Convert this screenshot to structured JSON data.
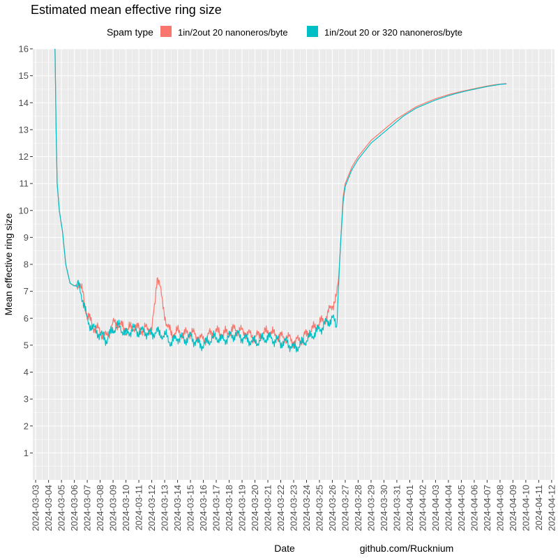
{
  "chart_data": {
    "type": "line",
    "title": "Estimated mean effective ring size",
    "xlabel": "Date",
    "ylabel": "Mean effective ring size",
    "caption": "github.com/Rucknium",
    "legend": {
      "title": "Spam type",
      "position": "top"
    },
    "ylim": [
      0,
      16
    ],
    "yticks": [
      1,
      2,
      3,
      4,
      5,
      6,
      7,
      8,
      9,
      10,
      11,
      12,
      13,
      14,
      15,
      16
    ],
    "xlim": [
      "2024-03-03",
      "2024-04-12"
    ],
    "xticks": [
      "2024-03-03",
      "2024-03-04",
      "2024-03-05",
      "2024-03-06",
      "2024-03-07",
      "2024-03-08",
      "2024-03-09",
      "2024-03-10",
      "2024-03-11",
      "2024-03-12",
      "2024-03-13",
      "2024-03-14",
      "2024-03-15",
      "2024-03-16",
      "2024-03-17",
      "2024-03-18",
      "2024-03-19",
      "2024-03-20",
      "2024-03-21",
      "2024-03-22",
      "2024-03-23",
      "2024-03-24",
      "2024-03-25",
      "2024-03-26",
      "2024-03-27",
      "2024-03-28",
      "2024-03-29",
      "2024-03-30",
      "2024-03-31",
      "2024-04-01",
      "2024-04-02",
      "2024-04-03",
      "2024-04-04",
      "2024-04-05",
      "2024-04-06",
      "2024-04-07",
      "2024-04-08",
      "2024-04-09",
      "2024-04-10",
      "2024-04-11",
      "2024-04-12"
    ],
    "grid": true,
    "series": [
      {
        "name": "1in/2out 20 nanoneros/byte",
        "color": "#F8766D",
        "points": [
          [
            "2024-03-04 12:00",
            16.0
          ],
          [
            "2024-03-04 14:00",
            13.0
          ],
          [
            "2024-03-04 16:00",
            11.0
          ],
          [
            "2024-03-04 20:00",
            10.0
          ],
          [
            "2024-03-05 02:00",
            9.2
          ],
          [
            "2024-03-05 08:00",
            8.0
          ],
          [
            "2024-03-05 16:00",
            7.3
          ],
          [
            "2024-03-06 00:00",
            7.2
          ],
          [
            "2024-03-06 08:00",
            7.3
          ],
          [
            "2024-03-06 16:00",
            6.9
          ],
          [
            "2024-03-07 00:00",
            6.1
          ],
          [
            "2024-03-07 12:00",
            5.7
          ],
          [
            "2024-03-08 00:00",
            5.5
          ],
          [
            "2024-03-08 12:00",
            5.3
          ],
          [
            "2024-03-09 00:00",
            5.8
          ],
          [
            "2024-03-09 12:00",
            5.8
          ],
          [
            "2024-03-10 00:00",
            5.5
          ],
          [
            "2024-03-10 12:00",
            5.7
          ],
          [
            "2024-03-11 00:00",
            5.6
          ],
          [
            "2024-03-11 12:00",
            5.6
          ],
          [
            "2024-03-12 00:00",
            5.6
          ],
          [
            "2024-03-12 06:00",
            6.5
          ],
          [
            "2024-03-12 10:00",
            7.6
          ],
          [
            "2024-03-12 14:00",
            7.4
          ],
          [
            "2024-03-12 20:00",
            6.5
          ],
          [
            "2024-03-13 04:00",
            5.8
          ],
          [
            "2024-03-13 12:00",
            5.4
          ],
          [
            "2024-03-14 00:00",
            5.5
          ],
          [
            "2024-03-14 12:00",
            5.4
          ],
          [
            "2024-03-15 00:00",
            5.5
          ],
          [
            "2024-03-15 12:00",
            5.3
          ],
          [
            "2024-03-16 00:00",
            5.2
          ],
          [
            "2024-03-16 12:00",
            5.4
          ],
          [
            "2024-03-17 00:00",
            5.5
          ],
          [
            "2024-03-17 12:00",
            5.4
          ],
          [
            "2024-03-18 00:00",
            5.5
          ],
          [
            "2024-03-18 12:00",
            5.6
          ],
          [
            "2024-03-19 00:00",
            5.5
          ],
          [
            "2024-03-19 12:00",
            5.4
          ],
          [
            "2024-03-20 00:00",
            5.3
          ],
          [
            "2024-03-20 12:00",
            5.4
          ],
          [
            "2024-03-21 00:00",
            5.5
          ],
          [
            "2024-03-21 12:00",
            5.4
          ],
          [
            "2024-03-22 00:00",
            5.3
          ],
          [
            "2024-03-22 12:00",
            5.3
          ],
          [
            "2024-03-23 00:00",
            5.1
          ],
          [
            "2024-03-23 12:00",
            5.2
          ],
          [
            "2024-03-24 00:00",
            5.4
          ],
          [
            "2024-03-24 12:00",
            5.6
          ],
          [
            "2024-03-25 00:00",
            5.8
          ],
          [
            "2024-03-25 12:00",
            6.0
          ],
          [
            "2024-03-26 00:00",
            6.5
          ],
          [
            "2024-03-26 08:00",
            6.8
          ],
          [
            "2024-03-26 12:00",
            7.5
          ],
          [
            "2024-03-26 16:00",
            9.0
          ],
          [
            "2024-03-26 20:00",
            10.5
          ],
          [
            "2024-03-27 00:00",
            11.0
          ],
          [
            "2024-03-27 12:00",
            11.6
          ],
          [
            "2024-03-28 00:00",
            12.0
          ],
          [
            "2024-03-28 12:00",
            12.3
          ],
          [
            "2024-03-29 00:00",
            12.6
          ],
          [
            "2024-03-29 12:00",
            12.8
          ],
          [
            "2024-03-30 00:00",
            13.0
          ],
          [
            "2024-03-30 12:00",
            13.2
          ],
          [
            "2024-03-31 00:00",
            13.4
          ],
          [
            "2024-03-31 12:00",
            13.55
          ],
          [
            "2024-04-01 00:00",
            13.7
          ],
          [
            "2024-04-01 12:00",
            13.85
          ],
          [
            "2024-04-02 00:00",
            13.95
          ],
          [
            "2024-04-02 12:00",
            14.05
          ],
          [
            "2024-04-03 00:00",
            14.15
          ],
          [
            "2024-04-03 12:00",
            14.22
          ],
          [
            "2024-04-04 00:00",
            14.3
          ],
          [
            "2024-04-04 12:00",
            14.36
          ],
          [
            "2024-04-05 00:00",
            14.42
          ],
          [
            "2024-04-05 12:00",
            14.47
          ],
          [
            "2024-04-06 00:00",
            14.52
          ],
          [
            "2024-04-06 12:00",
            14.57
          ],
          [
            "2024-04-07 00:00",
            14.62
          ],
          [
            "2024-04-07 12:00",
            14.66
          ],
          [
            "2024-04-08 00:00",
            14.69
          ],
          [
            "2024-04-08 12:00",
            14.71
          ]
        ]
      },
      {
        "name": "1in/2out 20 or 320 nanoneros/byte",
        "color": "#00BFC4",
        "points": [
          [
            "2024-03-04 12:00",
            16.0
          ],
          [
            "2024-03-04 14:00",
            13.0
          ],
          [
            "2024-03-04 16:00",
            11.0
          ],
          [
            "2024-03-04 20:00",
            10.0
          ],
          [
            "2024-03-05 02:00",
            9.2
          ],
          [
            "2024-03-05 08:00",
            8.0
          ],
          [
            "2024-03-05 16:00",
            7.3
          ],
          [
            "2024-03-06 00:00",
            7.2
          ],
          [
            "2024-03-06 08:00",
            7.2
          ],
          [
            "2024-03-06 16:00",
            6.7
          ],
          [
            "2024-03-07 00:00",
            5.9
          ],
          [
            "2024-03-07 12:00",
            5.6
          ],
          [
            "2024-03-08 00:00",
            5.4
          ],
          [
            "2024-03-08 12:00",
            5.2
          ],
          [
            "2024-03-09 00:00",
            5.6
          ],
          [
            "2024-03-09 12:00",
            5.7
          ],
          [
            "2024-03-10 00:00",
            5.4
          ],
          [
            "2024-03-10 12:00",
            5.6
          ],
          [
            "2024-03-11 00:00",
            5.5
          ],
          [
            "2024-03-11 12:00",
            5.5
          ],
          [
            "2024-03-12 00:00",
            5.4
          ],
          [
            "2024-03-12 06:00",
            5.5
          ],
          [
            "2024-03-12 10:00",
            5.5
          ],
          [
            "2024-03-12 14:00",
            5.4
          ],
          [
            "2024-03-12 20:00",
            5.4
          ],
          [
            "2024-03-13 04:00",
            5.3
          ],
          [
            "2024-03-13 12:00",
            5.1
          ],
          [
            "2024-03-14 00:00",
            5.3
          ],
          [
            "2024-03-14 12:00",
            5.2
          ],
          [
            "2024-03-15 00:00",
            5.3
          ],
          [
            "2024-03-15 12:00",
            5.1
          ],
          [
            "2024-03-16 00:00",
            5.0
          ],
          [
            "2024-03-16 12:00",
            5.2
          ],
          [
            "2024-03-17 00:00",
            5.3
          ],
          [
            "2024-03-17 12:00",
            5.2
          ],
          [
            "2024-03-18 00:00",
            5.3
          ],
          [
            "2024-03-18 12:00",
            5.4
          ],
          [
            "2024-03-19 00:00",
            5.3
          ],
          [
            "2024-03-19 12:00",
            5.2
          ],
          [
            "2024-03-20 00:00",
            5.1
          ],
          [
            "2024-03-20 12:00",
            5.2
          ],
          [
            "2024-03-21 00:00",
            5.3
          ],
          [
            "2024-03-21 12:00",
            5.2
          ],
          [
            "2024-03-22 00:00",
            5.1
          ],
          [
            "2024-03-22 12:00",
            5.1
          ],
          [
            "2024-03-23 00:00",
            4.9
          ],
          [
            "2024-03-23 12:00",
            5.0
          ],
          [
            "2024-03-24 00:00",
            5.2
          ],
          [
            "2024-03-24 12:00",
            5.4
          ],
          [
            "2024-03-25 00:00",
            5.6
          ],
          [
            "2024-03-25 12:00",
            5.8
          ],
          [
            "2024-03-26 00:00",
            6.0
          ],
          [
            "2024-03-26 08:00",
            5.7
          ],
          [
            "2024-03-26 12:00",
            7.5
          ],
          [
            "2024-03-26 16:00",
            9.0
          ],
          [
            "2024-03-26 20:00",
            10.3
          ],
          [
            "2024-03-27 00:00",
            10.9
          ],
          [
            "2024-03-27 12:00",
            11.5
          ],
          [
            "2024-03-28 00:00",
            11.9
          ],
          [
            "2024-03-28 12:00",
            12.2
          ],
          [
            "2024-03-29 00:00",
            12.5
          ],
          [
            "2024-03-29 12:00",
            12.7
          ],
          [
            "2024-03-30 00:00",
            12.9
          ],
          [
            "2024-03-30 12:00",
            13.1
          ],
          [
            "2024-03-31 00:00",
            13.3
          ],
          [
            "2024-03-31 12:00",
            13.5
          ],
          [
            "2024-04-01 00:00",
            13.65
          ],
          [
            "2024-04-01 12:00",
            13.8
          ],
          [
            "2024-04-02 00:00",
            13.9
          ],
          [
            "2024-04-02 12:00",
            14.0
          ],
          [
            "2024-04-03 00:00",
            14.1
          ],
          [
            "2024-04-03 12:00",
            14.18
          ],
          [
            "2024-04-04 00:00",
            14.26
          ],
          [
            "2024-04-04 12:00",
            14.33
          ],
          [
            "2024-04-05 00:00",
            14.39
          ],
          [
            "2024-04-05 12:00",
            14.45
          ],
          [
            "2024-04-06 00:00",
            14.5
          ],
          [
            "2024-04-06 12:00",
            14.55
          ],
          [
            "2024-04-07 00:00",
            14.6
          ],
          [
            "2024-04-07 12:00",
            14.64
          ],
          [
            "2024-04-08 00:00",
            14.68
          ],
          [
            "2024-04-08 12:00",
            14.7
          ]
        ]
      }
    ]
  }
}
